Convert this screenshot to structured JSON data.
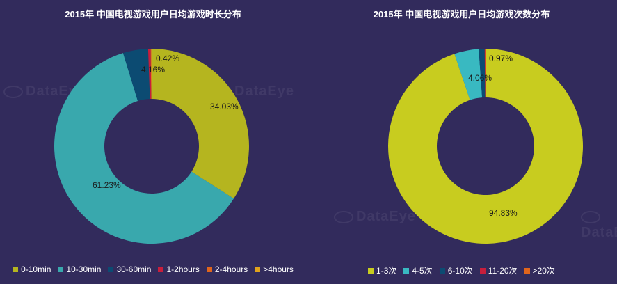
{
  "watermark": "DataEye",
  "chart_data": [
    {
      "type": "pie",
      "title": "2015年 中国电视游戏用户日均游戏时长分布",
      "categories": [
        "0-10min",
        "10-30min",
        "30-60min",
        "1-2hours",
        "2-4hours",
        ">4hours"
      ],
      "values": [
        34.03,
        61.23,
        4.16,
        0.42,
        0.08,
        0.08
      ],
      "labels": [
        "34.03%",
        "61.23%",
        "4.16%",
        "0.42%",
        "",
        ""
      ],
      "colors": [
        "#b5b51f",
        "#39a8ad",
        "#0c4b72",
        "#c81e3c",
        "#e0651c",
        "#e0a21c"
      ],
      "legend": "bottom"
    },
    {
      "type": "pie",
      "title": "2015年 中国电视游戏用户日均游戏次数分布",
      "categories": [
        "1-3次",
        "4-5次",
        "6-10次",
        "11-20次",
        ">20次"
      ],
      "values": [
        94.83,
        4.06,
        0.97,
        0.08,
        0.06
      ],
      "labels": [
        "94.83%",
        "4.06%",
        "0.97%",
        "",
        ""
      ],
      "colors": [
        "#c8cc1f",
        "#39b9c1",
        "#0c4b72",
        "#c81e3c",
        "#e0651c"
      ],
      "legend": "bottom"
    }
  ]
}
